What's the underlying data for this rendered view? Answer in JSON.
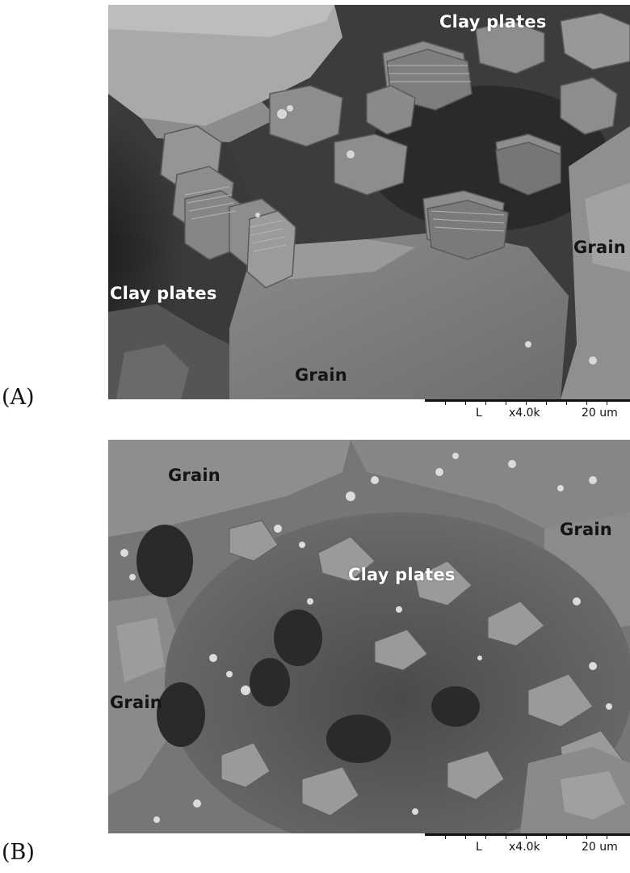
{
  "panels": [
    {
      "id": "A",
      "letter": "(A)",
      "labels": [
        {
          "text": "Clay plates",
          "tone": "light"
        },
        {
          "text": "Grain",
          "tone": "dark"
        },
        {
          "text": "Clay plates",
          "tone": "light"
        },
        {
          "text": "Grain",
          "tone": "dark"
        }
      ],
      "scalebar": {
        "mode": "L",
        "magnification": "x4.0k",
        "length": "20 um"
      }
    },
    {
      "id": "B",
      "letter": "(B)",
      "labels": [
        {
          "text": "Grain",
          "tone": "dark"
        },
        {
          "text": "Grain",
          "tone": "dark"
        },
        {
          "text": "Clay plates",
          "tone": "light"
        },
        {
          "text": "Grain",
          "tone": "dark"
        }
      ],
      "scalebar": {
        "mode": "L",
        "magnification": "x4.0k",
        "length": "20 um"
      }
    }
  ]
}
